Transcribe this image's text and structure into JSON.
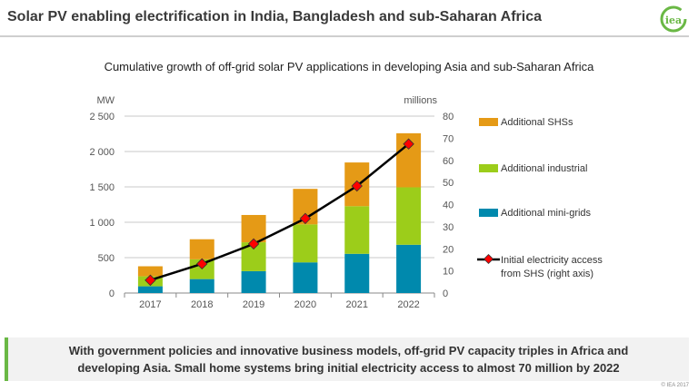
{
  "header": {
    "title": "Solar PV enabling electrification in India, Bangladesh and sub-Saharan Africa",
    "logo_text": "iea"
  },
  "chart_data": {
    "type": "bar",
    "stacked": true,
    "title": "Cumulative growth of off-grid solar PV applications in developing Asia and sub-Saharan Africa",
    "categories": [
      "2017",
      "2018",
      "2019",
      "2020",
      "2021",
      "2022"
    ],
    "ylabel": "MW",
    "ylim": [
      0,
      2500
    ],
    "yticks": [
      0,
      500,
      1000,
      1500,
      2000,
      2500
    ],
    "ytick_labels": [
      "0",
      "500",
      "1 000",
      "1 500",
      "2 000",
      "2 500"
    ],
    "y2label": "millions",
    "y2lim": [
      0,
      80
    ],
    "y2ticks": [
      0,
      10,
      20,
      30,
      40,
      50,
      60,
      70,
      80
    ],
    "grid": true,
    "legend": "right",
    "series": [
      {
        "name": "Additional mini-grids",
        "color": "#0089ad",
        "values": [
          95,
          197,
          309,
          433,
          554,
          682
        ]
      },
      {
        "name": "Additional industrial",
        "color": "#9ccd1a",
        "values": [
          141,
          279,
          408,
          537,
          673,
          812
        ]
      },
      {
        "name": "Additional SHSs",
        "color": "#e59a16",
        "values": [
          142,
          284,
          386,
          502,
          618,
          764
        ]
      }
    ],
    "line": {
      "name": "Initial electricity access from SHS (right axis)",
      "name_lines": [
        "Initial electricity access",
        "from SHS (right axis)"
      ],
      "axis": "right",
      "color": "#000000",
      "marker_color": "#ff0000",
      "values": [
        5.8,
        13.2,
        22.2,
        33.7,
        48.4,
        67.4
      ]
    }
  },
  "footer": {
    "line1": "With government policies and innovative business models, off-grid PV capacity triples in Africa and",
    "line2": "developing Asia. Small home systems bring initial electricity access to almost 70 million by 2022",
    "copyright": "© IEA 2017"
  }
}
